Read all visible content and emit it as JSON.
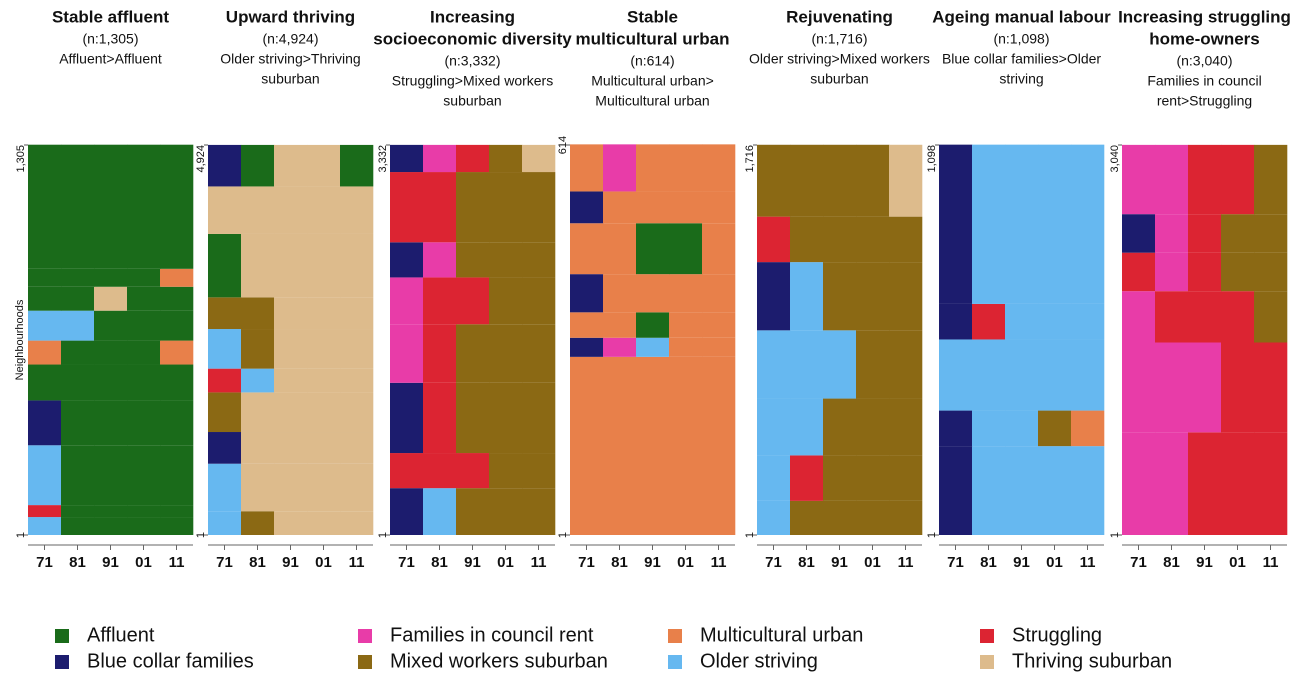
{
  "chart_data": [
    {
      "type": "sequence",
      "title": [
        "Stable affluent"
      ],
      "n_label": "(n:1,305)",
      "subtitle": [
        "Affluent>Affluent"
      ],
      "ylabel": "Neighbourhoods",
      "categories": [
        "71",
        "81",
        "91",
        "01",
        "11"
      ],
      "ylim": [
        1,
        1305
      ],
      "yticks": [
        1,
        {
          "value": 1305,
          "label": "1,305"
        }
      ],
      "sequences": [
        {
          "count": 60,
          "states": [
            5,
            0,
            0,
            0,
            0
          ]
        },
        {
          "count": 40,
          "states": [
            6,
            0,
            0,
            0,
            0
          ]
        },
        {
          "count": 200,
          "states": [
            5,
            0,
            0,
            0,
            0
          ]
        },
        {
          "count": 150,
          "states": [
            1,
            0,
            0,
            0,
            0
          ]
        },
        {
          "count": 120,
          "states": [
            0,
            0,
            0,
            0,
            0
          ]
        },
        {
          "count": 80,
          "states": [
            4,
            0,
            0,
            0,
            4
          ]
        },
        {
          "count": 100,
          "states": [
            5,
            5,
            0,
            0,
            0
          ]
        },
        {
          "count": 80,
          "states": [
            0,
            0,
            7,
            0,
            0
          ]
        },
        {
          "count": 60,
          "states": [
            0,
            0,
            0,
            0,
            4
          ]
        },
        {
          "count": 415,
          "states": [
            0,
            0,
            0,
            0,
            0
          ]
        }
      ]
    },
    {
      "type": "sequence",
      "title": [
        "Upward thriving"
      ],
      "n_label": "(n:4,924)",
      "subtitle": [
        "Older striving>Thriving",
        "suburban"
      ],
      "categories": [
        "71",
        "81",
        "91",
        "01",
        "11"
      ],
      "ylim": [
        1,
        4924
      ],
      "yticks": [
        1,
        {
          "value": 4924,
          "label": "4,924"
        }
      ],
      "sequences": [
        {
          "count": 300,
          "states": [
            5,
            3,
            7,
            7,
            7
          ]
        },
        {
          "count": 600,
          "states": [
            5,
            7,
            7,
            7,
            7
          ]
        },
        {
          "count": 400,
          "states": [
            1,
            7,
            7,
            7,
            7
          ]
        },
        {
          "count": 500,
          "states": [
            3,
            7,
            7,
            7,
            7
          ]
        },
        {
          "count": 300,
          "states": [
            6,
            5,
            7,
            7,
            7
          ]
        },
        {
          "count": 500,
          "states": [
            5,
            3,
            7,
            7,
            7
          ]
        },
        {
          "count": 400,
          "states": [
            3,
            3,
            7,
            7,
            7
          ]
        },
        {
          "count": 800,
          "states": [
            0,
            7,
            7,
            7,
            7
          ]
        },
        {
          "count": 600,
          "states": [
            7,
            7,
            7,
            7,
            7
          ]
        },
        {
          "count": 524,
          "states": [
            1,
            0,
            7,
            7,
            0
          ]
        }
      ]
    },
    {
      "type": "sequence",
      "title": [
        "Increasing",
        "socioeconomic diversity"
      ],
      "n_label": "(n:3,332)",
      "subtitle": [
        "Struggling>Mixed workers",
        "suburban"
      ],
      "categories": [
        "71",
        "81",
        "91",
        "01",
        "11"
      ],
      "ylim": [
        1,
        3332
      ],
      "yticks": [
        1,
        {
          "value": 3332,
          "label": "3,332"
        }
      ],
      "sequences": [
        {
          "count": 400,
          "states": [
            1,
            5,
            3,
            3,
            3
          ]
        },
        {
          "count": 300,
          "states": [
            6,
            6,
            6,
            3,
            3
          ]
        },
        {
          "count": 600,
          "states": [
            1,
            6,
            3,
            3,
            3
          ]
        },
        {
          "count": 500,
          "states": [
            2,
            6,
            3,
            3,
            3
          ]
        },
        {
          "count": 400,
          "states": [
            2,
            6,
            6,
            3,
            3
          ]
        },
        {
          "count": 300,
          "states": [
            1,
            2,
            3,
            3,
            3
          ]
        },
        {
          "count": 600,
          "states": [
            6,
            6,
            3,
            3,
            3
          ]
        },
        {
          "count": 232,
          "states": [
            1,
            2,
            6,
            3,
            7
          ]
        }
      ]
    },
    {
      "type": "sequence",
      "title": [
        "Stable",
        "multicultural urban"
      ],
      "n_label": "(n:614)",
      "subtitle": [
        "Multicultural urban>",
        "Multicultural urban"
      ],
      "categories": [
        "71",
        "81",
        "91",
        "01",
        "11"
      ],
      "ylim": [
        1,
        614
      ],
      "yticks": [
        1,
        614
      ],
      "sequences": [
        {
          "count": 280,
          "states": [
            4,
            4,
            4,
            4,
            4
          ]
        },
        {
          "count": 30,
          "states": [
            1,
            2,
            5,
            4,
            4
          ]
        },
        {
          "count": 40,
          "states": [
            4,
            4,
            0,
            4,
            4
          ]
        },
        {
          "count": 60,
          "states": [
            1,
            4,
            4,
            4,
            4
          ]
        },
        {
          "count": 80,
          "states": [
            4,
            4,
            0,
            0,
            4
          ]
        },
        {
          "count": 50,
          "states": [
            1,
            4,
            4,
            4,
            4
          ]
        },
        {
          "count": 74,
          "states": [
            4,
            2,
            4,
            4,
            4
          ]
        }
      ]
    },
    {
      "type": "sequence",
      "title": [
        "Rejuvenating"
      ],
      "n_label": "(n:1,716)",
      "subtitle": [
        "Older striving>Mixed workers",
        "suburban"
      ],
      "categories": [
        "71",
        "81",
        "91",
        "01",
        "11"
      ],
      "ylim": [
        1,
        1716
      ],
      "yticks": [
        1,
        {
          "value": 1716,
          "label": "1,716"
        }
      ],
      "sequences": [
        {
          "count": 150,
          "states": [
            5,
            3,
            3,
            3,
            3
          ]
        },
        {
          "count": 200,
          "states": [
            5,
            6,
            3,
            3,
            3
          ]
        },
        {
          "count": 250,
          "states": [
            5,
            5,
            3,
            3,
            3
          ]
        },
        {
          "count": 300,
          "states": [
            5,
            5,
            5,
            3,
            3
          ]
        },
        {
          "count": 300,
          "states": [
            1,
            5,
            3,
            3,
            3
          ]
        },
        {
          "count": 200,
          "states": [
            6,
            3,
            3,
            3,
            3
          ]
        },
        {
          "count": 316,
          "states": [
            3,
            3,
            3,
            3,
            7
          ]
        }
      ]
    },
    {
      "type": "sequence",
      "title": [
        "Ageing manual labour"
      ],
      "n_label": "(n:1,098)",
      "subtitle": [
        "Blue collar families>Older",
        "striving"
      ],
      "categories": [
        "71",
        "81",
        "91",
        "01",
        "11"
      ],
      "ylim": [
        1,
        1098
      ],
      "yticks": [
        1,
        {
          "value": 1098,
          "label": "1,098"
        }
      ],
      "sequences": [
        {
          "count": 250,
          "states": [
            1,
            5,
            5,
            5,
            5
          ]
        },
        {
          "count": 100,
          "states": [
            1,
            5,
            5,
            3,
            4
          ]
        },
        {
          "count": 200,
          "states": [
            5,
            5,
            5,
            5,
            5
          ]
        },
        {
          "count": 100,
          "states": [
            1,
            6,
            5,
            5,
            5
          ]
        },
        {
          "count": 448,
          "states": [
            1,
            5,
            5,
            5,
            5
          ]
        }
      ]
    },
    {
      "type": "sequence",
      "title": [
        "Increasing struggling",
        "home-owners"
      ],
      "n_label": "(n:3,040)",
      "subtitle": [
        "Families in council",
        "rent>Struggling"
      ],
      "categories": [
        "71",
        "81",
        "91",
        "01",
        "11"
      ],
      "ylim": [
        1,
        3040
      ],
      "yticks": [
        1,
        {
          "value": 3040,
          "label": "3,040"
        }
      ],
      "sequences": [
        {
          "count": 800,
          "states": [
            2,
            2,
            6,
            6,
            6
          ]
        },
        {
          "count": 700,
          "states": [
            2,
            2,
            2,
            6,
            6
          ]
        },
        {
          "count": 400,
          "states": [
            2,
            6,
            6,
            6,
            3
          ]
        },
        {
          "count": 300,
          "states": [
            6,
            2,
            6,
            3,
            3
          ]
        },
        {
          "count": 300,
          "states": [
            1,
            2,
            6,
            3,
            3
          ]
        },
        {
          "count": 540,
          "states": [
            2,
            2,
            6,
            6,
            3
          ]
        }
      ]
    }
  ],
  "legend": [
    {
      "name": "Affluent",
      "color": "#1a6b1a"
    },
    {
      "name": "Blue collar families",
      "color": "#1c1c6e"
    },
    {
      "name": "Families in council rent",
      "color": "#e83ca8"
    },
    {
      "name": "Mixed workers suburban",
      "color": "#8b6914"
    },
    {
      "name": "Multicultural urban",
      "color": "#e8804a"
    },
    {
      "name": "Older striving",
      "color": "#66b8f0"
    },
    {
      "name": "Struggling",
      "color": "#dc2432"
    },
    {
      "name": "Thriving suburban",
      "color": "#ddbb8c"
    }
  ]
}
